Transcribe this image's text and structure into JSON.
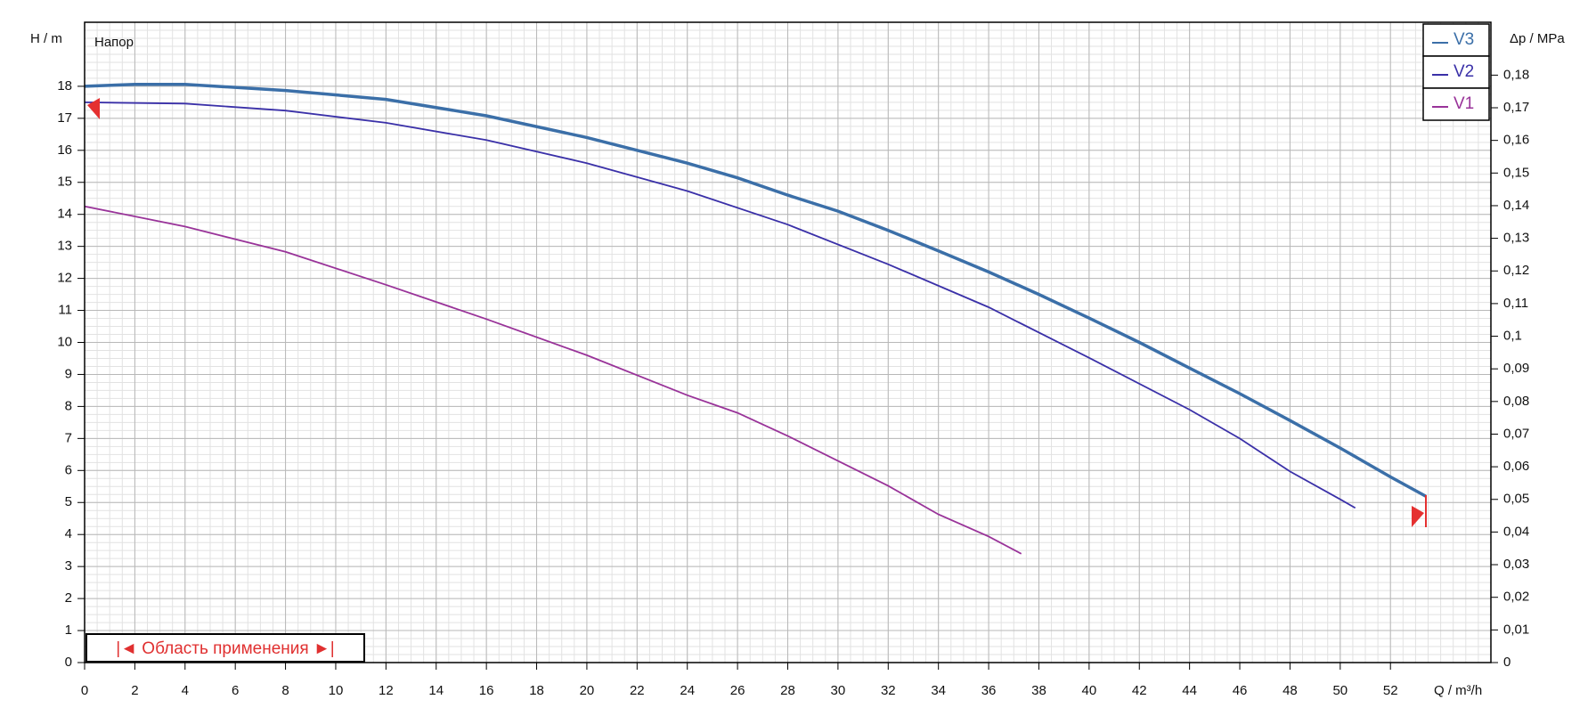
{
  "chart_data": {
    "type": "line",
    "title": "Напор",
    "y_label": "H / m",
    "y2_label": "Δp / MPa",
    "x_label": "Q / m³/h",
    "annotation": "|◄ Область применения ►|",
    "xlim": [
      0,
      56
    ],
    "xticks": [
      0,
      2,
      4,
      6,
      8,
      10,
      12,
      14,
      16,
      18,
      20,
      22,
      24,
      26,
      28,
      30,
      32,
      34,
      36,
      38,
      40,
      42,
      44,
      46,
      48,
      50,
      52
    ],
    "ylim": [
      0,
      20
    ],
    "yticks": [
      0,
      1,
      2,
      3,
      4,
      5,
      6,
      7,
      8,
      9,
      10,
      11,
      12,
      13,
      14,
      15,
      16,
      17,
      18
    ],
    "y2lim": [
      0,
      0.1962
    ],
    "y2ticks": [
      0,
      {
        "value": 0.01,
        "label": "0,01"
      },
      {
        "value": 0.02,
        "label": "0,02"
      },
      {
        "value": 0.03,
        "label": "0,03"
      },
      {
        "value": 0.04,
        "label": "0,04"
      },
      {
        "value": 0.05,
        "label": "0,05"
      },
      {
        "value": 0.06,
        "label": "0,06"
      },
      {
        "value": 0.07,
        "label": "0,07"
      },
      {
        "value": 0.08,
        "label": "0,08"
      },
      {
        "value": 0.09,
        "label": "0,09"
      },
      {
        "value": 0.1,
        "label": "0,1"
      },
      {
        "value": 0.11,
        "label": "0,11"
      },
      {
        "value": 0.12,
        "label": "0,12"
      },
      {
        "value": 0.13,
        "label": "0,13"
      },
      {
        "value": 0.14,
        "label": "0,14"
      },
      {
        "value": 0.15,
        "label": "0,15"
      },
      {
        "value": 0.16,
        "label": "0,16"
      },
      {
        "value": 0.17,
        "label": "0,17"
      },
      {
        "value": 0.18,
        "label": "0,18"
      }
    ],
    "grid": true,
    "legend": "top-right",
    "series": [
      {
        "name": "V3",
        "color": "#3b6fa8",
        "x": [
          0,
          2,
          4,
          8,
          12,
          16,
          20,
          24,
          26,
          28,
          30,
          32,
          34,
          36,
          38,
          40,
          42,
          44,
          46,
          48,
          50,
          52,
          53.4
        ],
        "values": [
          18.0,
          18.06,
          18.06,
          17.87,
          17.59,
          17.08,
          16.4,
          15.6,
          15.14,
          14.6,
          14.1,
          13.5,
          12.86,
          12.2,
          11.5,
          10.76,
          10.0,
          9.2,
          8.4,
          7.56,
          6.7,
          5.8,
          5.2
        ]
      },
      {
        "name": "V2",
        "color": "#3a30a8",
        "x": [
          0,
          4,
          8,
          12,
          16,
          20,
          24,
          28,
          32,
          36,
          40,
          44,
          46,
          48,
          50,
          50.6
        ],
        "values": [
          17.5,
          17.46,
          17.24,
          16.86,
          16.32,
          15.6,
          14.73,
          13.68,
          12.44,
          11.1,
          9.52,
          7.9,
          7.0,
          5.97,
          5.1,
          4.83
        ]
      },
      {
        "name": "V1",
        "color": "#993399",
        "x": [
          0,
          4,
          8,
          12,
          16,
          20,
          24,
          26,
          28,
          32,
          34,
          36,
          37.3
        ],
        "values": [
          14.25,
          13.62,
          12.83,
          11.8,
          10.73,
          9.6,
          8.35,
          7.8,
          7.08,
          5.52,
          4.63,
          3.94,
          3.4
        ]
      }
    ]
  }
}
